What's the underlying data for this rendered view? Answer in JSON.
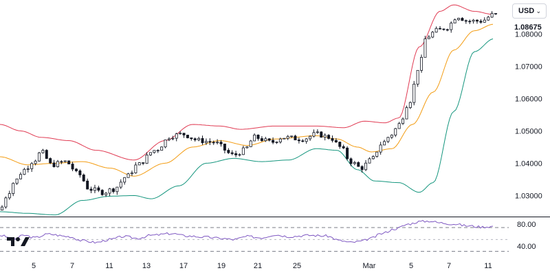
{
  "currency_selector": {
    "label": "USD",
    "icon": "chevron-down-icon"
  },
  "last_price": "1.08675",
  "logo": {
    "icon": "tradingview-logo-icon"
  },
  "colors": {
    "candle": "#131722",
    "upper_band": "#e03a52",
    "middle_band": "#f39c12",
    "lower_band": "#13957d",
    "rsi_line": "#7e57c2",
    "separator": "#131722"
  },
  "chart_data": {
    "type": "candlestick",
    "title": "",
    "price_axis": {
      "ticks": [
        "1.08000",
        "1.07000",
        "1.06000",
        "1.05000",
        "1.04000",
        "1.03000"
      ],
      "ylim": [
        1.0235,
        1.0905
      ]
    },
    "time_axis": {
      "ticks": [
        "5",
        "7",
        "11",
        "13",
        "17",
        "19",
        "21",
        "25",
        "Mar",
        "5",
        "7",
        "11"
      ]
    },
    "indicators": [
      "Bollinger Bands",
      "RSI"
    ],
    "bollinger": {
      "upper_anchors": [
        [
          0,
          1.052
        ],
        [
          30,
          1.05
        ],
        [
          60,
          1.048
        ],
        [
          100,
          1.047
        ],
        [
          140,
          1.044
        ],
        [
          195,
          1.041
        ],
        [
          240,
          1.047
        ],
        [
          280,
          1.052
        ],
        [
          320,
          1.0515
        ],
        [
          350,
          1.0505
        ],
        [
          400,
          1.0515
        ],
        [
          460,
          1.0515
        ],
        [
          500,
          1.051
        ],
        [
          530,
          1.053
        ],
        [
          560,
          1.0525
        ],
        [
          580,
          1.054
        ],
        [
          610,
          1.076
        ],
        [
          640,
          1.087
        ],
        [
          660,
          1.089
        ],
        [
          690,
          1.087
        ],
        [
          718,
          1.086
        ]
      ],
      "middle_anchors": [
        [
          0,
          1.042
        ],
        [
          40,
          1.0395
        ],
        [
          80,
          1.04
        ],
        [
          120,
          1.0405
        ],
        [
          160,
          1.0385
        ],
        [
          195,
          1.036
        ],
        [
          240,
          1.04
        ],
        [
          280,
          1.045
        ],
        [
          320,
          1.047
        ],
        [
          360,
          1.0455
        ],
        [
          400,
          1.0475
        ],
        [
          460,
          1.0485
        ],
        [
          490,
          1.0475
        ],
        [
          520,
          1.045
        ],
        [
          540,
          1.0435
        ],
        [
          570,
          1.0445
        ],
        [
          600,
          1.052
        ],
        [
          630,
          1.062
        ],
        [
          660,
          1.075
        ],
        [
          690,
          1.081
        ],
        [
          718,
          1.083
        ]
      ],
      "lower_anchors": [
        [
          0,
          1.025
        ],
        [
          40,
          1.0245
        ],
        [
          80,
          1.024
        ],
        [
          120,
          1.0285
        ],
        [
          160,
          1.0298
        ],
        [
          195,
          1.03
        ],
        [
          220,
          1.029
        ],
        [
          260,
          1.033
        ],
        [
          300,
          1.04
        ],
        [
          340,
          1.0415
        ],
        [
          380,
          1.0405
        ],
        [
          420,
          1.041
        ],
        [
          460,
          1.0445
        ],
        [
          490,
          1.044
        ],
        [
          520,
          1.038
        ],
        [
          545,
          1.0345
        ],
        [
          580,
          1.034
        ],
        [
          610,
          1.031
        ],
        [
          630,
          1.034
        ],
        [
          660,
          1.056
        ],
        [
          690,
          1.0745
        ],
        [
          718,
          1.0785
        ]
      ]
    },
    "candles": {
      "count": 134,
      "close_anchors": [
        [
          0,
          1.0255
        ],
        [
          10,
          1.03
        ],
        [
          20,
          1.034
        ],
        [
          35,
          1.038
        ],
        [
          50,
          1.041
        ],
        [
          60,
          1.0435
        ],
        [
          75,
          1.0395
        ],
        [
          95,
          1.0405
        ],
        [
          115,
          1.0365
        ],
        [
          130,
          1.032
        ],
        [
          150,
          1.031
        ],
        [
          165,
          1.032
        ],
        [
          185,
          1.036
        ],
        [
          200,
          1.0395
        ],
        [
          225,
          1.044
        ],
        [
          250,
          1.0485
        ],
        [
          265,
          1.049
        ],
        [
          290,
          1.047
        ],
        [
          310,
          1.0465
        ],
        [
          340,
          1.0425
        ],
        [
          355,
          1.044
        ],
        [
          370,
          1.048
        ],
        [
          395,
          1.0465
        ],
        [
          410,
          1.048
        ],
        [
          440,
          1.0475
        ],
        [
          460,
          1.049
        ],
        [
          480,
          1.048
        ],
        [
          495,
          1.045
        ],
        [
          510,
          1.0405
        ],
        [
          525,
          1.0385
        ],
        [
          540,
          1.041
        ],
        [
          555,
          1.046
        ],
        [
          570,
          1.049
        ],
        [
          580,
          1.052
        ],
        [
          595,
          1.059
        ],
        [
          610,
          1.07
        ],
        [
          620,
          1.079
        ],
        [
          635,
          1.081
        ],
        [
          650,
          1.082
        ],
        [
          665,
          1.0855
        ],
        [
          680,
          1.084
        ],
        [
          700,
          1.084
        ],
        [
          718,
          1.086
        ]
      ]
    },
    "rsi": {
      "ticks": [
        "80.00",
        "40.00"
      ],
      "ylim": [
        25,
        85
      ],
      "anchors": [
        [
          0,
          57
        ],
        [
          20,
          51
        ],
        [
          35,
          57
        ],
        [
          50,
          53
        ],
        [
          70,
          59
        ],
        [
          100,
          55
        ],
        [
          120,
          48
        ],
        [
          140,
          45
        ],
        [
          160,
          50
        ],
        [
          180,
          55
        ],
        [
          200,
          52
        ],
        [
          220,
          57
        ],
        [
          250,
          60
        ],
        [
          270,
          56
        ],
        [
          300,
          54
        ],
        [
          320,
          52
        ],
        [
          340,
          50
        ],
        [
          360,
          55
        ],
        [
          380,
          53
        ],
        [
          400,
          58
        ],
        [
          420,
          55
        ],
        [
          450,
          57
        ],
        [
          475,
          56
        ],
        [
          495,
          48
        ],
        [
          510,
          45
        ],
        [
          525,
          47
        ],
        [
          540,
          52
        ],
        [
          555,
          60
        ],
        [
          575,
          68
        ],
        [
          595,
          76
        ],
        [
          610,
          80
        ],
        [
          625,
          81
        ],
        [
          640,
          78
        ],
        [
          660,
          76
        ],
        [
          680,
          73
        ],
        [
          700,
          71
        ],
        [
          718,
          72
        ]
      ],
      "levels": [
        80,
        70,
        50,
        30
      ]
    }
  }
}
